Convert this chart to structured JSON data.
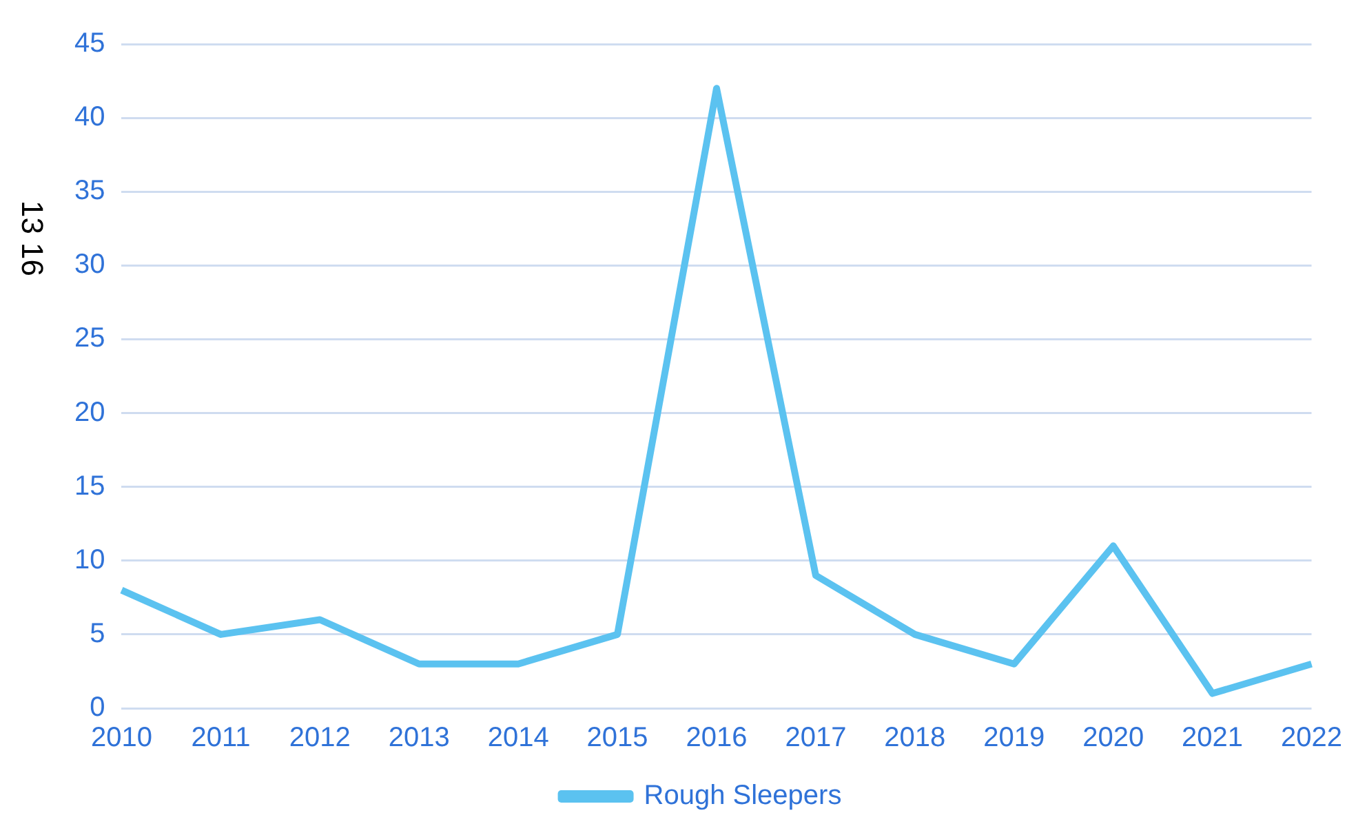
{
  "chart_data": {
    "type": "line",
    "ylabel": "13 16",
    "categories": [
      "2010",
      "2011",
      "2012",
      "2013",
      "2014",
      "2015",
      "2016",
      "2017",
      "2018",
      "2019",
      "2020",
      "2021",
      "2022"
    ],
    "series": [
      {
        "name": "Rough Sleepers",
        "color": "#5bc2f0",
        "values": [
          8,
          5,
          6,
          3,
          3,
          5,
          42,
          9,
          5,
          3,
          11,
          1,
          3
        ]
      }
    ],
    "ylim": [
      0,
      45
    ],
    "yticks": [
      0,
      5,
      10,
      15,
      20,
      25,
      30,
      35,
      40,
      45
    ],
    "grid": "y",
    "legend": "bottom",
    "marker": "none",
    "line_style": "solid"
  }
}
